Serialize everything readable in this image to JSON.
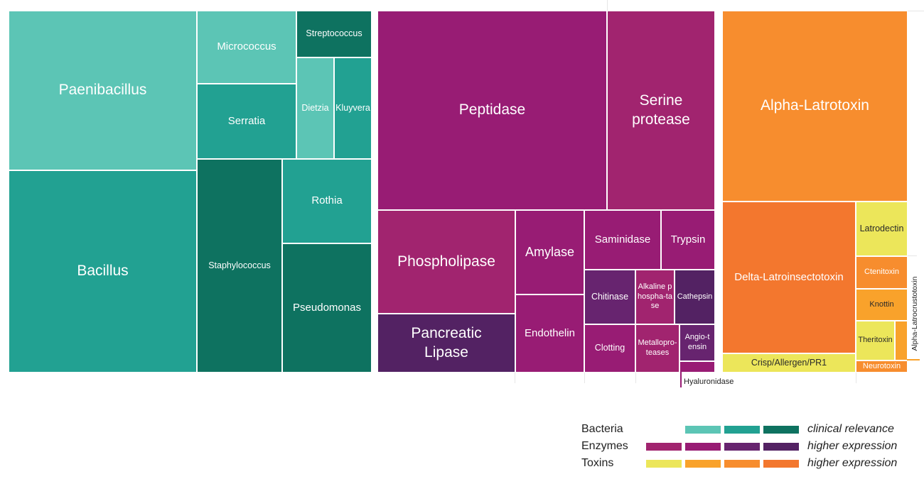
{
  "chart_data": {
    "type": "treemap",
    "groups": [
      {
        "name": "Bacteria",
        "items": [
          {
            "label": "Paenibacillus",
            "shade": 1
          },
          {
            "label": "Bacillus",
            "shade": 2
          },
          {
            "label": "Micrococcus",
            "shade": 1
          },
          {
            "label": "Streptococcus",
            "shade": 3
          },
          {
            "label": "Serratia",
            "shade": 2
          },
          {
            "label": "Dietzia",
            "shade": 1
          },
          {
            "label": "Kluyvera",
            "shade": 2
          },
          {
            "label": "Staphylococcus",
            "shade": 3
          },
          {
            "label": "Rothia",
            "shade": 2
          },
          {
            "label": "Pseudomonas",
            "shade": 3
          }
        ]
      },
      {
        "name": "Enzymes",
        "items": [
          {
            "label": "Peptidase",
            "shade": 2
          },
          {
            "label": "Serine protease",
            "shade": 1
          },
          {
            "label": "Phospholipase",
            "shade": 1
          },
          {
            "label": "Pancreatic Lipase",
            "shade": 4
          },
          {
            "label": "Amylase",
            "shade": 2
          },
          {
            "label": "Endothelin",
            "shade": 2
          },
          {
            "label": "Saminidase",
            "shade": 2
          },
          {
            "label": "Trypsin",
            "shade": 2
          },
          {
            "label": "Chitinase",
            "shade": 3
          },
          {
            "label": "Alkaline phospha-tase",
            "shade": 1
          },
          {
            "label": "Cathepsin",
            "shade": 4
          },
          {
            "label": "Clotting",
            "shade": 2
          },
          {
            "label": "Metallopro-teases",
            "shade": 1
          },
          {
            "label": "Angio-tensin",
            "shade": 3
          },
          {
            "label": "Hyaluronidase",
            "shade": 2
          }
        ]
      },
      {
        "name": "Toxins",
        "items": [
          {
            "label": "Alpha-Latrotoxin",
            "shade": 3
          },
          {
            "label": "Delta-Latroinsectotoxin",
            "shade": 4
          },
          {
            "label": "Crisp/Allergen/PR1",
            "shade": 1
          },
          {
            "label": "Latrodectin",
            "shade": 1
          },
          {
            "label": "Ctenitoxin",
            "shade": 3
          },
          {
            "label": "Knottin",
            "shade": 2
          },
          {
            "label": "Theritoxin",
            "shade": 1
          },
          {
            "label": "Alpha-Latrocrustotoxin",
            "shade": 2
          },
          {
            "label": "Neurotoxin",
            "shade": 3
          }
        ]
      }
    ],
    "legend": [
      {
        "label": "Bacteria",
        "note": "clinical relevance",
        "colors": [
          "#5cc5b5",
          "#22a192",
          "#0e7260"
        ]
      },
      {
        "label": "Enzymes",
        "note": "higher expression",
        "colors": [
          "#a1246f",
          "#981c74",
          "#67246f",
          "#532263"
        ]
      },
      {
        "label": "Toxins",
        "note": "higher expression",
        "colors": [
          "#ece65a",
          "#f9a22b",
          "#f78d2e",
          "#f3772e"
        ]
      }
    ],
    "legend_placement": "bottom-right"
  }
}
